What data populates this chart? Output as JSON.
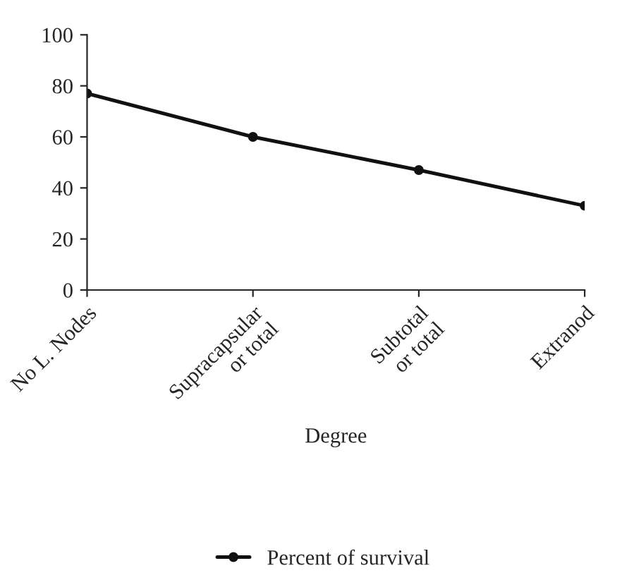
{
  "chart_data": {
    "type": "line",
    "xlabel": "Degree",
    "categories": [
      "No L. Nodes",
      "Supracapsular\nor total",
      "Subtotal\nor total",
      "Extranod"
    ],
    "series": [
      {
        "name": "Percent of survival",
        "color": "#111111",
        "values": [
          77,
          60,
          47,
          33
        ]
      }
    ],
    "ylim": [
      0,
      100
    ],
    "yticks": [
      0,
      20,
      40,
      60,
      80,
      100
    ],
    "grid": false,
    "legend": "bottom",
    "marker": "circle",
    "line_style": "solid"
  }
}
